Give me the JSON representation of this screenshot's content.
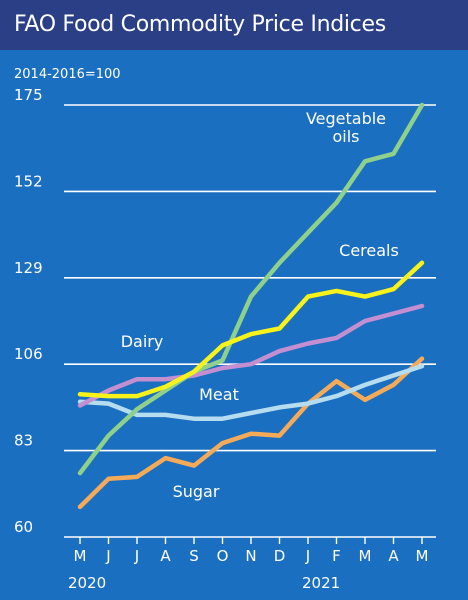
{
  "chart_data": {
    "type": "line",
    "title": "FAO Food Commodity Price Indices",
    "subtitle": "2014-2016=100",
    "x": [
      "M",
      "J",
      "J",
      "A",
      "S",
      "O",
      "N",
      "D",
      "J",
      "F",
      "M",
      "A",
      "M"
    ],
    "year_labels": [
      "2020",
      "2021"
    ],
    "ylim": [
      60,
      175
    ],
    "yticks": [
      60,
      83,
      106,
      129,
      152,
      175
    ],
    "grid": true,
    "legend": "inline labels",
    "series": [
      {
        "name": "Vegetable oils",
        "label_lines": [
          "Vegetable",
          "oils"
        ],
        "color": "#8fd18a",
        "values": [
          77,
          87,
          94,
          99,
          104,
          107,
          124,
          133,
          141,
          149,
          160,
          162,
          175
        ]
      },
      {
        "name": "Cereals",
        "label_lines": [
          "Cereals"
        ],
        "color": "#f6f21a",
        "values": [
          98,
          97.5,
          97.5,
          100,
          104,
          111,
          114,
          115.5,
          124,
          125.5,
          124,
          126,
          133
        ]
      },
      {
        "name": "Dairy",
        "label_lines": [
          "Dairy"
        ],
        "color": "#c38fd0",
        "values": [
          95,
          99,
          102,
          102,
          103,
          105,
          106,
          109.5,
          111.5,
          113,
          117.5,
          119.5,
          121.5
        ]
      },
      {
        "name": "Meat",
        "label_lines": [
          "Meat"
        ],
        "color": "#b6dcf0",
        "values": [
          96,
          95.5,
          92.5,
          92.5,
          91.5,
          91.5,
          93,
          94.5,
          95.5,
          97.5,
          100.5,
          103,
          105.5
        ]
      },
      {
        "name": "Sugar",
        "label_lines": [
          "Sugar"
        ],
        "color": "#f5aa58",
        "values": [
          68,
          75.5,
          76,
          81,
          79,
          85,
          87.5,
          87,
          95.5,
          101.5,
          96.5,
          100.5,
          107.5
        ]
      }
    ]
  }
}
